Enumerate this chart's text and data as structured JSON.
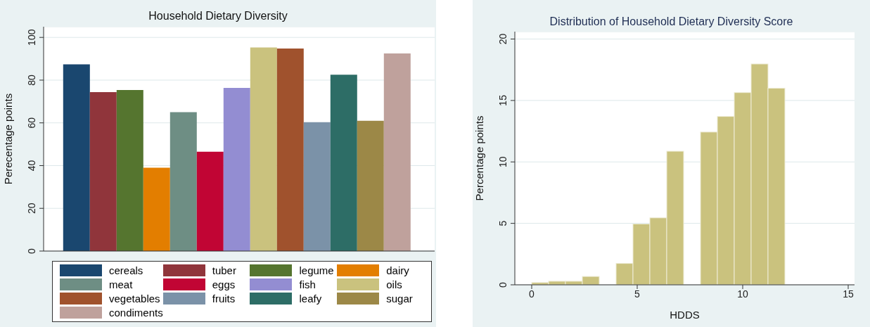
{
  "chart_data": [
    {
      "type": "bar",
      "title": "Household Dietary Diversity",
      "ylabel": "Perecentage points",
      "categories": [
        null
      ],
      "ylim": [
        0,
        105
      ],
      "yticks": [
        0,
        20,
        40,
        60,
        80,
        100
      ],
      "grid": "y",
      "legend": "bottom",
      "series": [
        {
          "name": "cereals",
          "color": "#1a476f",
          "values": [
            87.4
          ]
        },
        {
          "name": "tuber",
          "color": "#90353b",
          "values": [
            74.4
          ]
        },
        {
          "name": "legume",
          "color": "#55752f",
          "values": [
            75.4
          ]
        },
        {
          "name": "dairy",
          "color": "#e37e00",
          "values": [
            39.0
          ]
        },
        {
          "name": "meat",
          "color": "#6e8e84",
          "values": [
            65.0
          ]
        },
        {
          "name": "eggs",
          "color": "#c10534",
          "values": [
            46.5
          ]
        },
        {
          "name": "fish",
          "color": "#938dd2",
          "values": [
            76.4
          ]
        },
        {
          "name": "oils",
          "color": "#cac27e",
          "values": [
            95.3
          ]
        },
        {
          "name": "vegetables",
          "color": "#a0522d",
          "values": [
            94.8
          ]
        },
        {
          "name": "fruits",
          "color": "#7b92a8",
          "values": [
            60.3
          ]
        },
        {
          "name": "leafy",
          "color": "#2d6d66",
          "values": [
            82.5
          ]
        },
        {
          "name": "sugar",
          "color": "#9c8847",
          "values": [
            61.0
          ]
        },
        {
          "name": "condiments",
          "color": "#bfa19c",
          "values": [
            92.5
          ]
        }
      ]
    },
    {
      "type": "histogram",
      "title": "Distribution of Household Dietary Diversity Score",
      "xlabel": "HDDS",
      "ylabel": "Percentage points",
      "color": "#cac27e",
      "bins": [
        0,
        0.8,
        1.6,
        2.4,
        3.2,
        4.0,
        4.8,
        5.6,
        6.4,
        7.2,
        8.0,
        8.8,
        9.6,
        10.4,
        11.2,
        12.0
      ],
      "values": [
        0.18,
        0.29,
        0.29,
        0.68,
        0,
        1.74,
        4.95,
        5.45,
        10.87,
        0,
        12.43,
        13.7,
        15.64,
        17.97,
        16.0
      ],
      "xlim": [
        -0.8,
        15.3
      ],
      "xticks": [
        0,
        5,
        10,
        15
      ],
      "ylim": [
        0,
        20.6
      ],
      "yticks": [
        0,
        5,
        10,
        15,
        20
      ],
      "grid": "y"
    }
  ]
}
